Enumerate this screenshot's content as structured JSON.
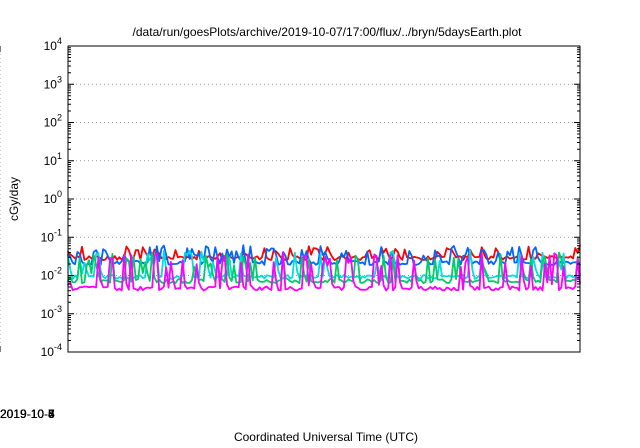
{
  "chart_data": {
    "type": "line",
    "title": "/data/run/goesPlots/archive/2019-10-07/17:00/flux/../bryn/5daysEarth.plot",
    "xlabel": "Coordinated Universal Time (UTC)",
    "ylabel": "cGy/day",
    "yscale": "log",
    "ylim": [
      0.0001,
      10000
    ],
    "xlim": [
      "2019-10-02 01:00",
      "2019-10-07 19:00"
    ],
    "yticks": [
      {
        "base": "10",
        "exp": "4"
      },
      {
        "base": "10",
        "exp": "3"
      },
      {
        "base": "10",
        "exp": "2"
      },
      {
        "base": "10",
        "exp": "1"
      },
      {
        "base": "10",
        "exp": "0"
      },
      {
        "base": "10",
        "exp": "-1"
      },
      {
        "base": "10",
        "exp": "-2"
      },
      {
        "base": "10",
        "exp": "-3"
      },
      {
        "base": "10",
        "exp": "-4"
      }
    ],
    "xticks": [
      "2019-10-3",
      "2019-10-4",
      "2019-10-5",
      "2019-10-6",
      "2019-10-7"
    ],
    "grid": true,
    "series": [
      {
        "color": "#ff0000",
        "base": 0.028,
        "spikes": [
          0.045,
          0.055,
          0.05
        ]
      },
      {
        "color": "#0066ff",
        "base": 0.021,
        "spikes": [
          0.04,
          0.05,
          0.055
        ]
      },
      {
        "color": "#00dddd",
        "base": 0.009,
        "spikes": [
          0.025,
          0.035,
          0.04
        ]
      },
      {
        "color": "#00cc66",
        "base": 0.007,
        "spikes": [
          0.02,
          0.03,
          0.035
        ]
      },
      {
        "color": "#ff00ff",
        "base": 0.0045,
        "spikes": [
          0.02,
          0.03,
          0.035
        ]
      }
    ]
  }
}
